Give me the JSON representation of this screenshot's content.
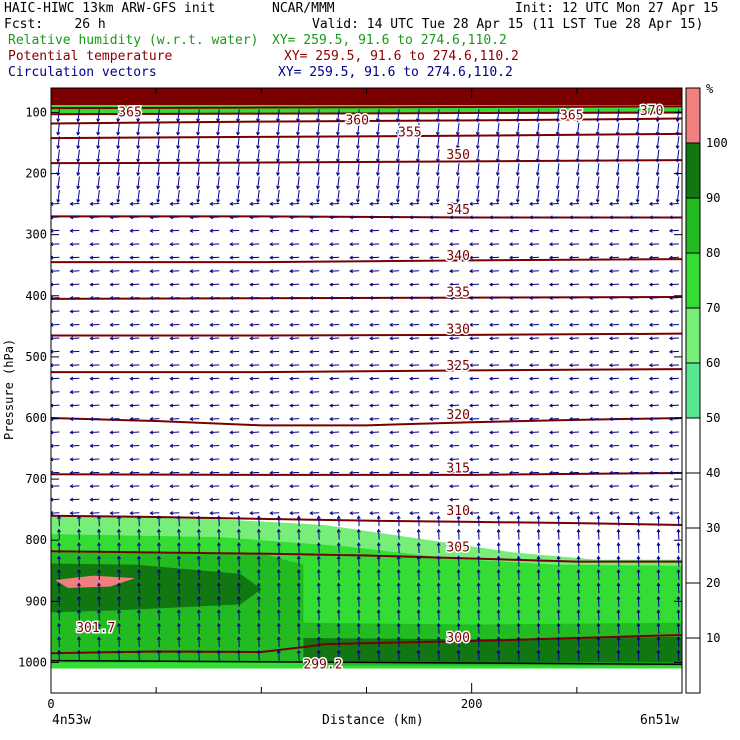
{
  "header": {
    "left_line1": "HAIC-HIWC 13km ARW-GFS init",
    "center_line1": "NCAR/MMM",
    "right_line1": "Init: 12 UTC Mon 27 Apr 15",
    "fcst": "Fcst:    26 h",
    "valid": "Valid: 14 UTC Tue 28 Apr 15 (11 LST Tue 28 Apr 15)",
    "fields": [
      {
        "name": "Relative humidity (w.r.t. water)",
        "xy": "XY= 259.5, 91.6 to 274.6,110.2",
        "color": "#1a9a1a"
      },
      {
        "name": "Potential temperature",
        "xy": "XY= 259.5, 91.6 to 274.6,110.2",
        "color": "#8b0000"
      },
      {
        "name": "Circulation vectors",
        "xy": "XY= 259.5, 91.6 to 274.6,110.2",
        "color": "#00008b"
      }
    ]
  },
  "chart_data": {
    "type": "heatmap",
    "ylabel": "Pressure (hPa)",
    "xlabel": "Distance (km)",
    "x_endpoint_left": "4n53w",
    "x_endpoint_right": "6n51w",
    "xlim": [
      0,
      300
    ],
    "x_ticks": [
      0,
      200
    ],
    "ylim": [
      1050,
      60
    ],
    "y_ticks": [
      100,
      200,
      300,
      400,
      500,
      600,
      700,
      800,
      900,
      1000
    ],
    "colorbar": {
      "unit": "%",
      "ticks": [
        10,
        20,
        30,
        40,
        50,
        60,
        70,
        80,
        90,
        100
      ],
      "levels": [
        {
          "from": 50,
          "to": 60,
          "color": "#55e890"
        },
        {
          "from": 60,
          "to": 70,
          "color": "#77ee77"
        },
        {
          "from": 70,
          "to": 80,
          "color": "#33dd33"
        },
        {
          "from": 80,
          "to": 90,
          "color": "#22bb22"
        },
        {
          "from": 90,
          "to": 100,
          "color": "#117711"
        },
        {
          "from": 100,
          "to": 110,
          "color": "#f08080"
        }
      ]
    },
    "theta_contours": [
      {
        "label": "300",
        "points": [
          [
            0,
            985
          ],
          [
            50,
            982
          ],
          [
            100,
            983
          ],
          [
            120,
            975
          ],
          [
            130,
            970
          ],
          [
            200,
            965
          ],
          [
            250,
            960
          ],
          [
            300,
            955
          ]
        ]
      },
      {
        "label": "305",
        "points": [
          [
            0,
            818
          ],
          [
            50,
            820
          ],
          [
            100,
            822
          ],
          [
            150,
            825
          ],
          [
            200,
            830
          ],
          [
            250,
            835
          ],
          [
            300,
            835
          ]
        ]
      },
      {
        "label": "310",
        "points": [
          [
            0,
            760
          ],
          [
            50,
            762
          ],
          [
            100,
            765
          ],
          [
            150,
            768
          ],
          [
            200,
            770
          ],
          [
            250,
            772
          ],
          [
            300,
            775
          ]
        ]
      },
      {
        "label": "315",
        "points": [
          [
            0,
            692
          ],
          [
            100,
            693
          ],
          [
            200,
            693
          ],
          [
            300,
            690
          ]
        ]
      },
      {
        "label": "320",
        "points": [
          [
            0,
            600
          ],
          [
            50,
            605
          ],
          [
            100,
            612
          ],
          [
            150,
            612
          ],
          [
            200,
            607
          ],
          [
            250,
            603
          ],
          [
            300,
            600
          ]
        ]
      },
      {
        "label": "325",
        "points": [
          [
            0,
            525
          ],
          [
            100,
            525
          ],
          [
            200,
            522
          ],
          [
            300,
            520
          ]
        ]
      },
      {
        "label": "330",
        "points": [
          [
            0,
            465
          ],
          [
            100,
            465
          ],
          [
            200,
            464
          ],
          [
            300,
            462
          ]
        ]
      },
      {
        "label": "335",
        "points": [
          [
            0,
            405
          ],
          [
            100,
            404
          ],
          [
            200,
            403
          ],
          [
            300,
            402
          ]
        ]
      },
      {
        "label": "340",
        "points": [
          [
            0,
            345
          ],
          [
            100,
            345
          ],
          [
            200,
            342
          ],
          [
            300,
            340
          ]
        ]
      },
      {
        "label": "345",
        "points": [
          [
            0,
            270
          ],
          [
            100,
            270
          ],
          [
            200,
            272
          ],
          [
            300,
            272
          ]
        ]
      },
      {
        "label": "350",
        "points": [
          [
            0,
            183
          ],
          [
            100,
            182
          ],
          [
            200,
            180
          ],
          [
            300,
            178
          ]
        ]
      },
      {
        "label": "355",
        "points": [
          [
            0,
            142
          ],
          [
            100,
            140
          ],
          [
            200,
            138
          ],
          [
            300,
            135
          ]
        ]
      },
      {
        "label": "360",
        "points": [
          [
            0,
            118
          ],
          [
            100,
            115
          ],
          [
            200,
            113
          ],
          [
            300,
            110
          ]
        ]
      },
      {
        "label": "365",
        "points": [
          [
            0,
            103
          ],
          [
            100,
            102
          ],
          [
            200,
            101
          ],
          [
            300,
            100
          ]
        ]
      },
      {
        "label": "370",
        "points": [
          [
            0,
            93
          ],
          [
            100,
            92
          ],
          [
            200,
            91
          ],
          [
            300,
            90
          ]
        ]
      }
    ],
    "contour_labels": [
      {
        "text": "365",
        "x": 32,
        "p": 100
      },
      {
        "text": "360",
        "x": 140,
        "p": 113
      },
      {
        "text": "355",
        "x": 165,
        "p": 133
      },
      {
        "text": "365",
        "x": 242,
        "p": 105
      },
      {
        "text": "370",
        "x": 280,
        "p": 98
      },
      {
        "text": "350",
        "x": 188,
        "p": 170
      },
      {
        "text": "345",
        "x": 188,
        "p": 260
      },
      {
        "text": "340",
        "x": 188,
        "p": 335
      },
      {
        "text": "335",
        "x": 188,
        "p": 395
      },
      {
        "text": "330",
        "x": 188,
        "p": 455
      },
      {
        "text": "325",
        "x": 188,
        "p": 515
      },
      {
        "text": "320",
        "x": 188,
        "p": 595
      },
      {
        "text": "315",
        "x": 188,
        "p": 683
      },
      {
        "text": "310",
        "x": 188,
        "p": 752
      },
      {
        "text": "305",
        "x": 188,
        "p": 812
      },
      {
        "text": "300",
        "x": 188,
        "p": 960
      },
      {
        "text": "301.7",
        "x": 12,
        "p": 944
      },
      {
        "text": "299.2",
        "x": 120,
        "p": 1003
      }
    ],
    "rh_regions": [
      {
        "rh": 60,
        "points": [
          [
            0,
            760
          ],
          [
            60,
            762
          ],
          [
            130,
            775
          ],
          [
            180,
            800
          ],
          [
            220,
            820
          ],
          [
            260,
            832
          ],
          [
            300,
            832
          ],
          [
            300,
            1010
          ],
          [
            0,
            1010
          ]
        ]
      },
      {
        "rh": 70,
        "points": [
          [
            0,
            790
          ],
          [
            80,
            795
          ],
          [
            140,
            810
          ],
          [
            190,
            830
          ],
          [
            240,
            840
          ],
          [
            300,
            842
          ],
          [
            300,
            1010
          ],
          [
            0,
            1010
          ]
        ]
      },
      {
        "rh": 80,
        "points": [
          [
            0,
            820
          ],
          [
            100,
            822
          ],
          [
            120,
            840
          ],
          [
            120,
            1000
          ],
          [
            0,
            1000
          ]
        ]
      },
      {
        "rh": 80,
        "points": [
          [
            120,
            935
          ],
          [
            200,
            938
          ],
          [
            300,
            935
          ],
          [
            300,
            1005
          ],
          [
            120,
            1005
          ]
        ]
      },
      {
        "rh": 90,
        "points": [
          [
            0,
            838
          ],
          [
            40,
            840
          ],
          [
            90,
            855
          ],
          [
            100,
            880
          ],
          [
            90,
            905
          ],
          [
            30,
            915
          ],
          [
            0,
            918
          ]
        ]
      },
      {
        "rh": 90,
        "points": [
          [
            120,
            960
          ],
          [
            200,
            962
          ],
          [
            300,
            958
          ],
          [
            300,
            1000
          ],
          [
            120,
            1000
          ]
        ]
      },
      {
        "rh": 100,
        "points": [
          [
            2,
            865
          ],
          [
            20,
            858
          ],
          [
            40,
            862
          ],
          [
            28,
            876
          ],
          [
            8,
            878
          ]
        ]
      }
    ],
    "top_band": {
      "rh": 100,
      "from_p": 60,
      "to_p": 88,
      "color": "#7a0000"
    },
    "wind_vectors": {
      "description": "Circulation vectors in cross-section plane",
      "color": "#00008b"
    }
  }
}
